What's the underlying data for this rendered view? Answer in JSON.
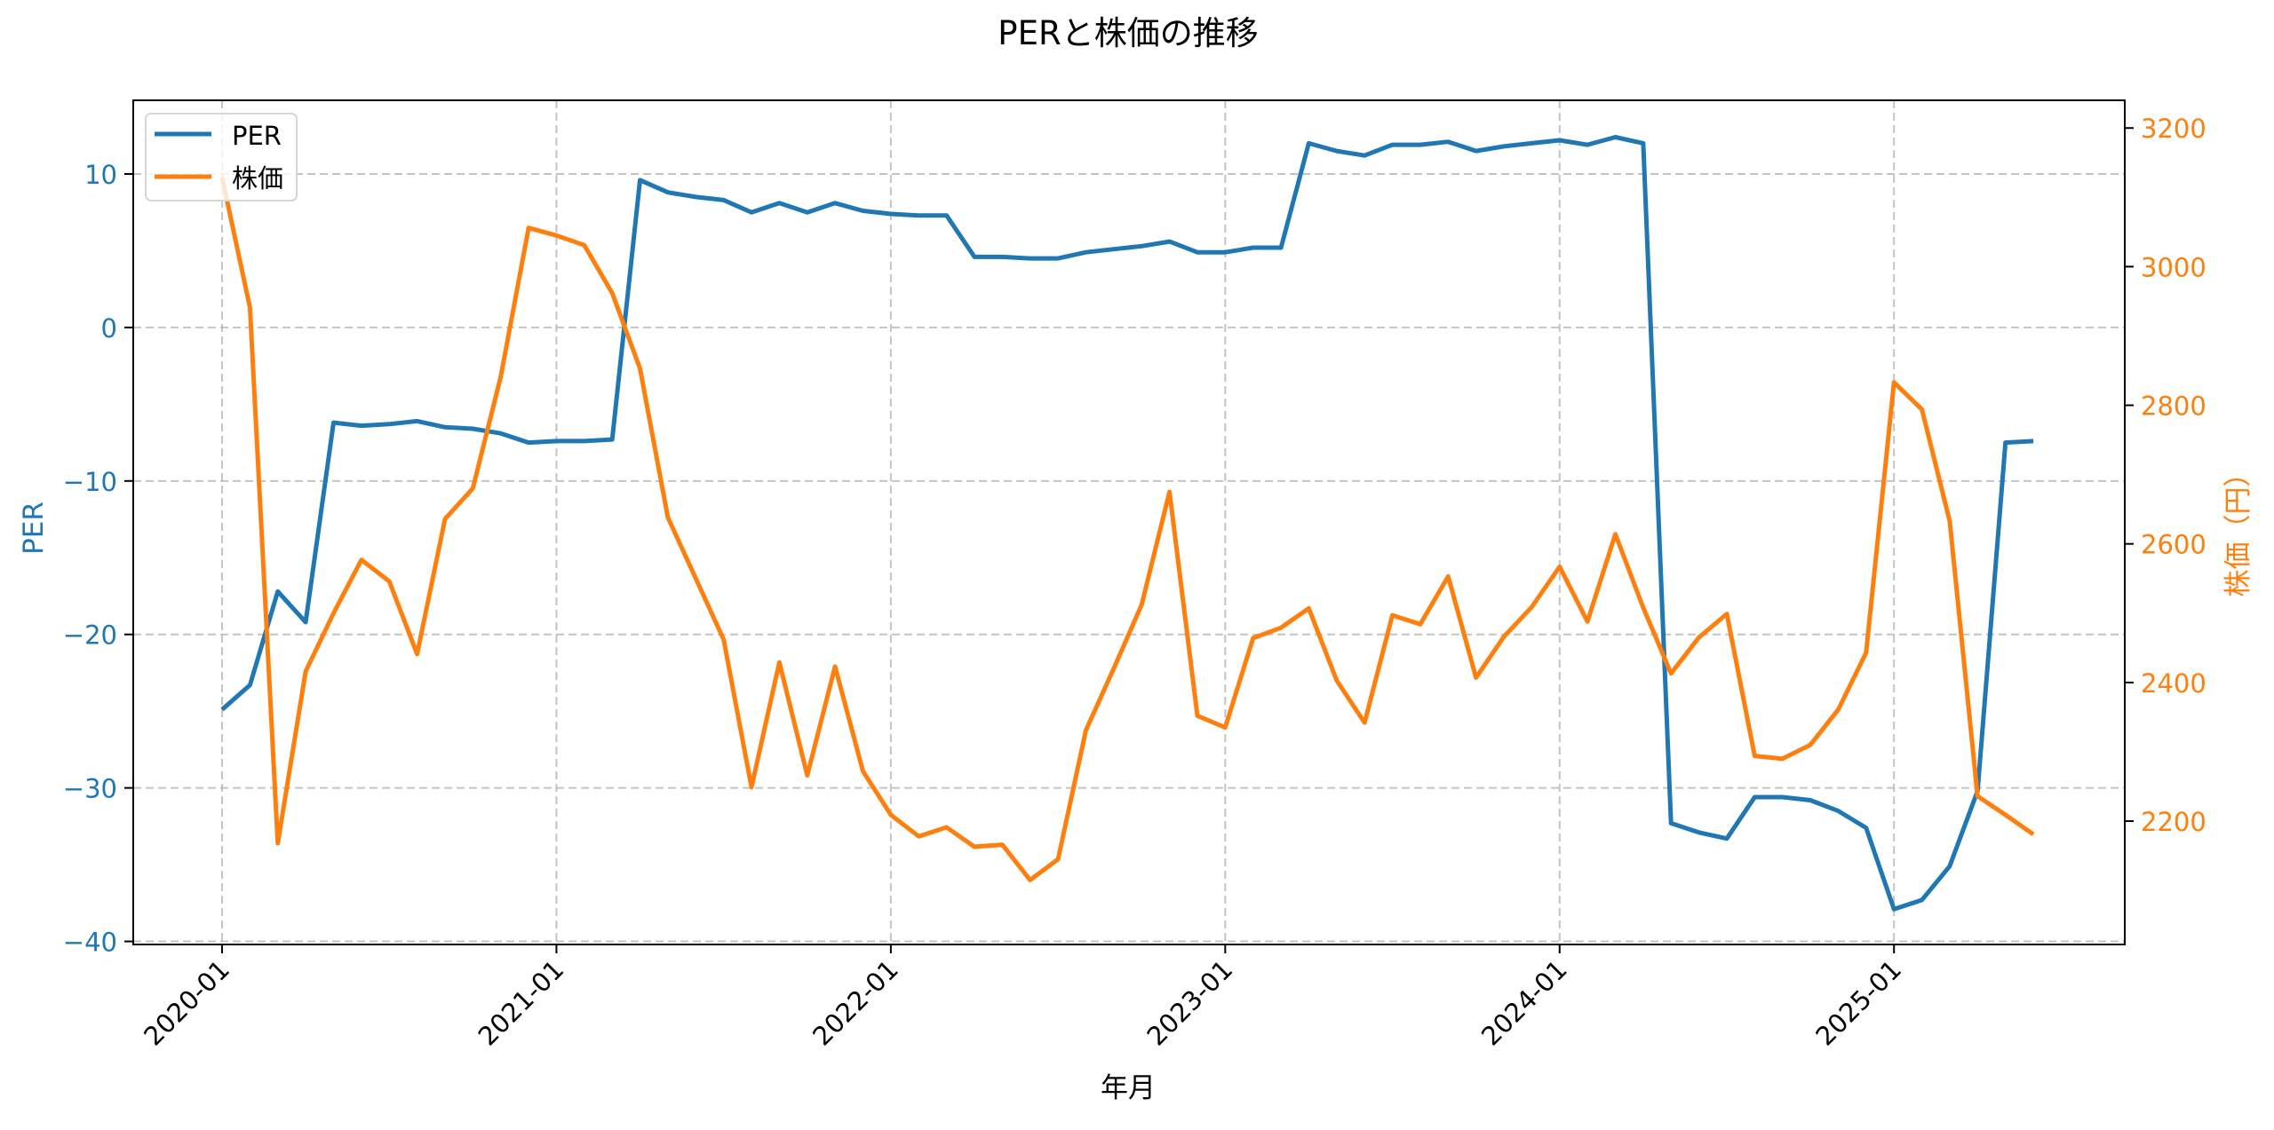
{
  "chart_data": {
    "type": "line",
    "title": "PERと株価の推移",
    "xlabel": "年月",
    "ylabel_left": "PER",
    "ylabel_right": "株価（円）",
    "x_ticks": [
      "2020-01",
      "2021-01",
      "2022-01",
      "2023-01",
      "2024-01",
      "2025-01"
    ],
    "y_left_ticks": [
      10,
      0,
      -10,
      -20,
      -30,
      -40
    ],
    "y_left_lim": [
      -40.2,
      14.8
    ],
    "y_right_ticks": [
      3200,
      3000,
      2800,
      2600,
      2400,
      2200
    ],
    "y_right_lim": [
      2022,
      3240
    ],
    "grid": true,
    "legend_position": "upper left",
    "x": [
      "2020-01",
      "2020-02",
      "2020-03",
      "2020-04",
      "2020-05",
      "2020-06",
      "2020-07",
      "2020-08",
      "2020-09",
      "2020-10",
      "2020-11",
      "2020-12",
      "2021-01",
      "2021-02",
      "2021-03",
      "2021-04",
      "2021-05",
      "2021-06",
      "2021-07",
      "2021-08",
      "2021-09",
      "2021-10",
      "2021-11",
      "2021-12",
      "2022-01",
      "2022-02",
      "2022-03",
      "2022-04",
      "2022-05",
      "2022-06",
      "2022-07",
      "2022-08",
      "2022-09",
      "2022-10",
      "2022-11",
      "2022-12",
      "2023-01",
      "2023-02",
      "2023-03",
      "2023-04",
      "2023-05",
      "2023-06",
      "2023-07",
      "2023-08",
      "2023-09",
      "2023-10",
      "2023-11",
      "2023-12",
      "2024-01",
      "2024-02",
      "2024-03",
      "2024-04",
      "2024-05",
      "2024-06",
      "2024-07",
      "2024-08",
      "2024-09",
      "2024-10",
      "2024-11",
      "2024-12",
      "2025-01",
      "2025-02",
      "2025-03",
      "2025-04",
      "2025-05",
      "2025-06"
    ],
    "series": [
      {
        "name": "PER",
        "axis": "left",
        "color": "#1f77b4",
        "values": [
          -24.9,
          -23.3,
          -17.2,
          -19.2,
          -6.2,
          -6.4,
          -6.3,
          -6.1,
          -6.5,
          -6.6,
          -6.9,
          -7.5,
          -7.4,
          -7.4,
          -7.3,
          9.6,
          8.8,
          8.5,
          8.3,
          7.5,
          8.1,
          7.5,
          8.1,
          7.6,
          7.4,
          7.3,
          7.3,
          4.6,
          4.6,
          4.5,
          4.5,
          4.9,
          5.1,
          5.3,
          5.6,
          4.9,
          4.9,
          5.2,
          5.2,
          12.0,
          11.5,
          11.2,
          11.9,
          11.9,
          12.1,
          11.5,
          11.8,
          12.0,
          12.2,
          11.9,
          12.4,
          12.0,
          -32.3,
          -32.9,
          -33.3,
          -30.6,
          -30.6,
          -30.8,
          -31.5,
          -32.6,
          -37.9,
          -37.3,
          -35.1,
          -30.2,
          -7.5,
          -7.4
        ]
      },
      {
        "name": "株価",
        "axis": "right",
        "color": "#ff7f0e",
        "values": [
          3129,
          2941,
          2168,
          2416,
          2500,
          2577,
          2546,
          2441,
          2636,
          2680,
          2841,
          3056,
          3045,
          3031,
          2962,
          2853,
          2638,
          2550,
          2462,
          2249,
          2429,
          2266,
          2423,
          2272,
          2209,
          2178,
          2191,
          2163,
          2166,
          2115,
          2145,
          2331,
          2420,
          2512,
          2675,
          2352,
          2335,
          2464,
          2479,
          2507,
          2403,
          2342,
          2497,
          2484,
          2553,
          2407,
          2466,
          2509,
          2567,
          2488,
          2614,
          2508,
          2413,
          2465,
          2499,
          2294,
          2290,
          2310,
          2361,
          2443,
          2833,
          2794,
          2633,
          2236,
          2209,
          2181
        ]
      }
    ]
  },
  "colors": {
    "per": "#1f77b4",
    "price": "#ff7f0e",
    "grid": "#b0b0b0",
    "axis": "#000000"
  }
}
